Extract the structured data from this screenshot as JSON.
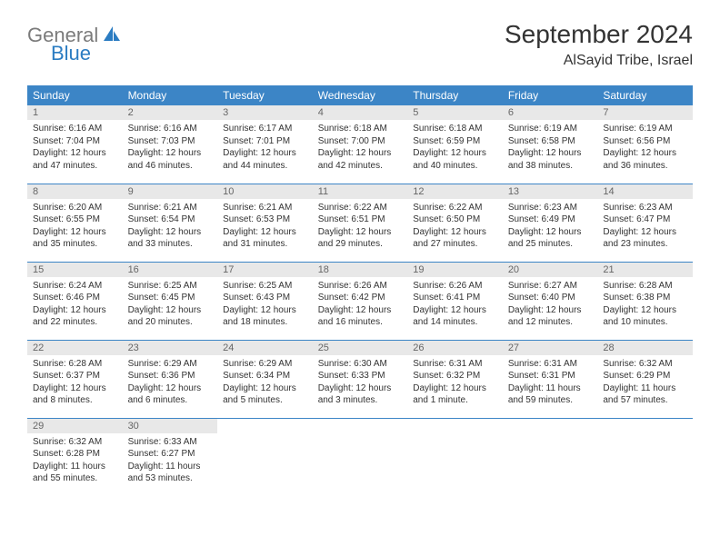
{
  "logo": {
    "part1": "General",
    "part2": "Blue"
  },
  "title": "September 2024",
  "location": "AlSayid Tribe, Israel",
  "colors": {
    "header_bg": "#3c85c6",
    "header_text": "#ffffff",
    "daynum_bg": "#e8e8e8",
    "daynum_text": "#666666",
    "body_text": "#333333",
    "border": "#3c85c6",
    "logo_gray": "#7b7b7b",
    "logo_blue": "#2b7cc2"
  },
  "weekdays": [
    "Sunday",
    "Monday",
    "Tuesday",
    "Wednesday",
    "Thursday",
    "Friday",
    "Saturday"
  ],
  "days": [
    {
      "n": "1",
      "sr": "6:16 AM",
      "ss": "7:04 PM",
      "dl": "12 hours and 47 minutes."
    },
    {
      "n": "2",
      "sr": "6:16 AM",
      "ss": "7:03 PM",
      "dl": "12 hours and 46 minutes."
    },
    {
      "n": "3",
      "sr": "6:17 AM",
      "ss": "7:01 PM",
      "dl": "12 hours and 44 minutes."
    },
    {
      "n": "4",
      "sr": "6:18 AM",
      "ss": "7:00 PM",
      "dl": "12 hours and 42 minutes."
    },
    {
      "n": "5",
      "sr": "6:18 AM",
      "ss": "6:59 PM",
      "dl": "12 hours and 40 minutes."
    },
    {
      "n": "6",
      "sr": "6:19 AM",
      "ss": "6:58 PM",
      "dl": "12 hours and 38 minutes."
    },
    {
      "n": "7",
      "sr": "6:19 AM",
      "ss": "6:56 PM",
      "dl": "12 hours and 36 minutes."
    },
    {
      "n": "8",
      "sr": "6:20 AM",
      "ss": "6:55 PM",
      "dl": "12 hours and 35 minutes."
    },
    {
      "n": "9",
      "sr": "6:21 AM",
      "ss": "6:54 PM",
      "dl": "12 hours and 33 minutes."
    },
    {
      "n": "10",
      "sr": "6:21 AM",
      "ss": "6:53 PM",
      "dl": "12 hours and 31 minutes."
    },
    {
      "n": "11",
      "sr": "6:22 AM",
      "ss": "6:51 PM",
      "dl": "12 hours and 29 minutes."
    },
    {
      "n": "12",
      "sr": "6:22 AM",
      "ss": "6:50 PM",
      "dl": "12 hours and 27 minutes."
    },
    {
      "n": "13",
      "sr": "6:23 AM",
      "ss": "6:49 PM",
      "dl": "12 hours and 25 minutes."
    },
    {
      "n": "14",
      "sr": "6:23 AM",
      "ss": "6:47 PM",
      "dl": "12 hours and 23 minutes."
    },
    {
      "n": "15",
      "sr": "6:24 AM",
      "ss": "6:46 PM",
      "dl": "12 hours and 22 minutes."
    },
    {
      "n": "16",
      "sr": "6:25 AM",
      "ss": "6:45 PM",
      "dl": "12 hours and 20 minutes."
    },
    {
      "n": "17",
      "sr": "6:25 AM",
      "ss": "6:43 PM",
      "dl": "12 hours and 18 minutes."
    },
    {
      "n": "18",
      "sr": "6:26 AM",
      "ss": "6:42 PM",
      "dl": "12 hours and 16 minutes."
    },
    {
      "n": "19",
      "sr": "6:26 AM",
      "ss": "6:41 PM",
      "dl": "12 hours and 14 minutes."
    },
    {
      "n": "20",
      "sr": "6:27 AM",
      "ss": "6:40 PM",
      "dl": "12 hours and 12 minutes."
    },
    {
      "n": "21",
      "sr": "6:28 AM",
      "ss": "6:38 PM",
      "dl": "12 hours and 10 minutes."
    },
    {
      "n": "22",
      "sr": "6:28 AM",
      "ss": "6:37 PM",
      "dl": "12 hours and 8 minutes."
    },
    {
      "n": "23",
      "sr": "6:29 AM",
      "ss": "6:36 PM",
      "dl": "12 hours and 6 minutes."
    },
    {
      "n": "24",
      "sr": "6:29 AM",
      "ss": "6:34 PM",
      "dl": "12 hours and 5 minutes."
    },
    {
      "n": "25",
      "sr": "6:30 AM",
      "ss": "6:33 PM",
      "dl": "12 hours and 3 minutes."
    },
    {
      "n": "26",
      "sr": "6:31 AM",
      "ss": "6:32 PM",
      "dl": "12 hours and 1 minute."
    },
    {
      "n": "27",
      "sr": "6:31 AM",
      "ss": "6:31 PM",
      "dl": "11 hours and 59 minutes."
    },
    {
      "n": "28",
      "sr": "6:32 AM",
      "ss": "6:29 PM",
      "dl": "11 hours and 57 minutes."
    },
    {
      "n": "29",
      "sr": "6:32 AM",
      "ss": "6:28 PM",
      "dl": "11 hours and 55 minutes."
    },
    {
      "n": "30",
      "sr": "6:33 AM",
      "ss": "6:27 PM",
      "dl": "11 hours and 53 minutes."
    }
  ],
  "labels": {
    "sunrise": "Sunrise:",
    "sunset": "Sunset:",
    "daylight": "Daylight:"
  }
}
